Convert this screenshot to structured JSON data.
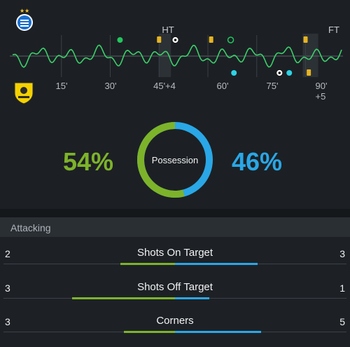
{
  "timeline": {
    "ht_label": "HT",
    "ft_label": "FT",
    "ticks": [
      "15'",
      "30'",
      "45'+4",
      "60'",
      "75'",
      "90' +5"
    ],
    "colors": {
      "home": "#7db32a",
      "away": "#2aa7e6",
      "line": "#3ccf6a",
      "card": "#e6b422"
    },
    "events_top": [
      {
        "minute": 33,
        "icon": "green-dot-icon"
      },
      {
        "minute": 45,
        "icon": "yellow-card-icon"
      },
      {
        "minute": 50,
        "icon": "soccer-ball-icon"
      },
      {
        "minute": 61,
        "icon": "yellow-card-icon"
      },
      {
        "minute": 67,
        "icon": "green-circle-icon"
      },
      {
        "minute": 90,
        "icon": "yellow-card-icon"
      }
    ],
    "events_bottom": [
      {
        "minute": 68,
        "icon": "cyan-dot-icon"
      },
      {
        "minute": 82,
        "icon": "soccer-ball-icon"
      },
      {
        "minute": 85,
        "icon": "cyan-dot-icon"
      },
      {
        "minute": 91,
        "icon": "yellow-card-icon"
      }
    ]
  },
  "teams": {
    "home_crest": "esteghlal-crest-icon",
    "away_crest": "sepahan-crest-icon"
  },
  "possession": {
    "label": "Possession",
    "home_text": "54%",
    "away_text": "46%",
    "home": 54,
    "away": 46
  },
  "section": {
    "title": "Attacking"
  },
  "stats": [
    {
      "label": "Shots On Target",
      "home": 2,
      "away": 3
    },
    {
      "label": "Shots Off Target",
      "home": 3,
      "away": 1
    },
    {
      "label": "Corners",
      "home": 3,
      "away": 5
    }
  ]
}
